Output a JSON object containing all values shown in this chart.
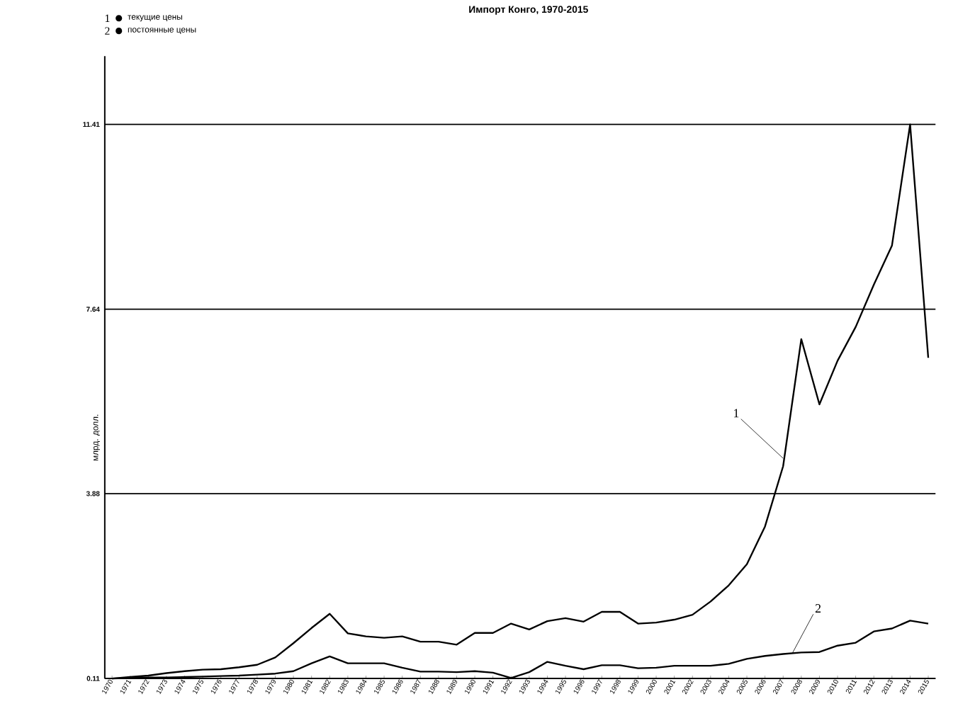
{
  "chart_data": {
    "type": "line",
    "title": "Импорт Конго, 1970-2015",
    "ylabel": "млрд. долл.",
    "x": [
      1970,
      1971,
      1972,
      1973,
      1974,
      1975,
      1976,
      1977,
      1978,
      1979,
      1980,
      1981,
      1982,
      1983,
      1984,
      1985,
      1986,
      1987,
      1988,
      1989,
      1990,
      1991,
      1992,
      1993,
      1994,
      1995,
      1996,
      1997,
      1998,
      1999,
      2000,
      2001,
      2002,
      2003,
      2004,
      2005,
      2006,
      2007,
      2008,
      2009,
      2010,
      2011,
      2012,
      2013,
      2014,
      2015
    ],
    "series": [
      {
        "name": "текущие цены",
        "color": "#000000",
        "values": [
          0.11,
          0.14,
          0.17,
          0.22,
          0.26,
          0.29,
          0.3,
          0.34,
          0.39,
          0.54,
          0.83,
          1.14,
          1.43,
          1.03,
          0.97,
          0.94,
          0.97,
          0.86,
          0.86,
          0.8,
          1.04,
          1.04,
          1.23,
          1.11,
          1.28,
          1.34,
          1.27,
          1.47,
          1.47,
          1.23,
          1.25,
          1.31,
          1.41,
          1.68,
          2.01,
          2.44,
          3.21,
          4.44,
          7.03,
          5.7,
          6.59,
          7.28,
          8.14,
          8.94,
          11.41,
          6.65
        ]
      },
      {
        "name": "постоянные цены",
        "color": "#000000",
        "values": [
          0.11,
          0.12,
          0.13,
          0.13,
          0.14,
          0.15,
          0.16,
          0.17,
          0.19,
          0.21,
          0.26,
          0.42,
          0.56,
          0.42,
          0.42,
          0.42,
          0.33,
          0.25,
          0.25,
          0.24,
          0.26,
          0.23,
          0.12,
          0.24,
          0.45,
          0.37,
          0.3,
          0.38,
          0.38,
          0.32,
          0.33,
          0.37,
          0.37,
          0.37,
          0.41,
          0.51,
          0.57,
          0.61,
          0.64,
          0.65,
          0.78,
          0.84,
          1.07,
          1.13,
          1.29,
          1.23
        ]
      }
    ],
    "annotations": [
      {
        "text": "1",
        "x": 2007,
        "y": 4.6
      },
      {
        "text": "2",
        "x": 2007.5,
        "y": 0.62
      }
    ],
    "xlim": [
      1969.6,
      2015.4
    ],
    "ylim": [
      0.11,
      12.8
    ],
    "xticks": [
      1970,
      1971,
      1972,
      1973,
      1974,
      1975,
      1976,
      1977,
      1978,
      1979,
      1980,
      1981,
      1982,
      1983,
      1984,
      1985,
      1986,
      1987,
      1988,
      1989,
      1990,
      1991,
      1992,
      1993,
      1994,
      1995,
      1996,
      1997,
      1998,
      1999,
      2000,
      2001,
      2002,
      2003,
      2004,
      2005,
      2006,
      2007,
      2008,
      2009,
      2010,
      2011,
      2012,
      2013,
      2014,
      2015
    ],
    "yticks": [
      0.11,
      3.88,
      7.64,
      11.41
    ],
    "grid": "y",
    "legend": "top left",
    "marker": "none",
    "line_style": "solid"
  }
}
